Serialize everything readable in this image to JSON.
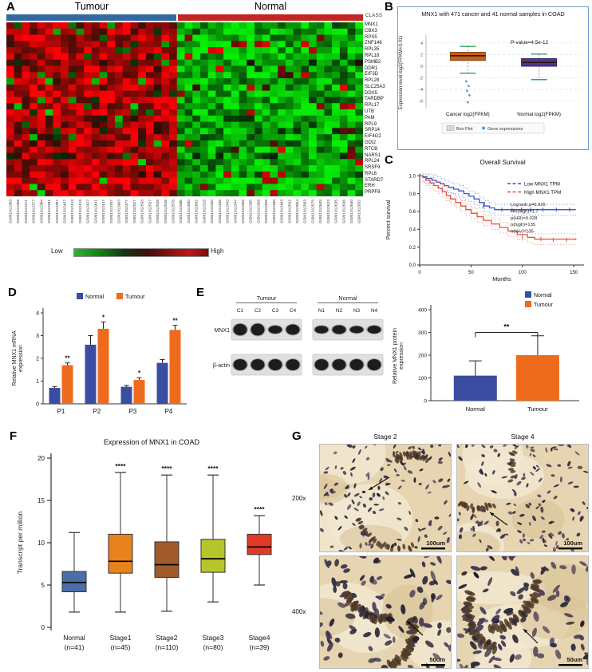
{
  "panels": {
    "a": "A",
    "b": "B",
    "c": "C",
    "d": "D",
    "e": "E",
    "f": "F",
    "g": "G"
  },
  "panel_a": {
    "groups": [
      {
        "name": "Tumour",
        "color": "#34699f"
      },
      {
        "name": "Normal",
        "color": "#c42424"
      }
    ],
    "class_label": "CLASS",
    "genes": [
      "MNX1",
      "CBX3",
      "RPS5",
      "ZNF146",
      "RPL35",
      "RPL18",
      "PSMB2",
      "DDR1",
      "EIF3D",
      "RPL28",
      "SLC25A3",
      "DDX5",
      "TARDBP",
      "RPL17",
      "UTB",
      "PAM",
      "RPL9",
      "SRP14",
      "EIF4G2",
      "GDI2",
      "RTCB",
      "NARS1",
      "RPL24",
      "SRSF9",
      "RPL6",
      "STARD7",
      "ERH",
      "PRPF8"
    ],
    "samples": [
      "GSM1012363",
      "GSM1012366",
      "GSM1012371",
      "GSM1012377",
      "GSM1012384",
      "GSM1012391",
      "GSM1012397",
      "GSM1012407",
      "GSM1012413",
      "GSM1012419",
      "GSM1012427",
      "GSM1012441",
      "GSM1012447",
      "GSM1012457",
      "GSM1012463",
      "GSM1012477",
      "GSM1012527",
      "GSM1012533",
      "GSM1012537",
      "GSM1012539",
      "GSM1012546",
      "GSM1012576",
      "GSM1012586",
      "GSM1012590",
      "GSM1012602",
      "GSM1012315",
      "GSM1012330",
      "GSM1012335",
      "GSM1012343",
      "GSM1012347",
      "GSM1012355",
      "GSM1012365",
      "GSM1012369",
      "GSM1012459",
      "GSM1012480",
      "GSM1012483",
      "GSM1012542",
      "GSM1012554",
      "GSM1012563",
      "GSM1012575",
      "GSM1012603",
      "GSM1012623",
      "GSM1012635",
      "GSM1012636",
      "GSM1012640",
      "GSM1012652"
    ],
    "scale": {
      "low": "Low",
      "high": "High"
    },
    "heatmap": {
      "tumour_cols": 22,
      "normal_cols": 24,
      "seed": 11
    }
  },
  "chart_data": [
    {
      "id": "b_box",
      "panel": "B",
      "type": "box",
      "title": "MNX1 with 471 cancer and 41 normal samples in COAD",
      "pvalue": "P-value=4.5e-12",
      "ylabel": "Expression level log2(FPKM+0.01)",
      "ylim": [
        -7,
        4.8
      ],
      "yticks": [
        -6,
        -4,
        -2,
        0,
        2,
        4
      ],
      "categories": [
        "Cancer log2(FPKM)",
        "Normal log2(FPKM)"
      ],
      "boxes": [
        {
          "low": -1.2,
          "q1": 1.0,
          "median": 1.8,
          "q3": 2.4,
          "high": 3.4,
          "color": "#c2611b",
          "stroke": "#8a4512",
          "outliers": [
            -2.6,
            -3.4,
            -4.2,
            -5.0,
            -6.2
          ]
        },
        {
          "low": -2.3,
          "q1": 0.0,
          "median": 0.65,
          "q3": 1.3,
          "high": 2.1,
          "color": "#50368f",
          "stroke": "#34215f",
          "outliers": []
        }
      ],
      "legend": [
        "Box Plot",
        "Gene expressions"
      ],
      "frame_color": "#6f9bd2"
    },
    {
      "id": "c_survival",
      "panel": "C",
      "type": "line",
      "title": "Overall Survival",
      "xlabel": "Months",
      "ylabel": "Percent survival",
      "xlim": [
        0,
        160
      ],
      "ylim": [
        0,
        1.02
      ],
      "xticks": [
        0,
        50,
        100,
        150
      ],
      "yticks": [
        0,
        0.2,
        0.4,
        0.6,
        0.8,
        1.0
      ],
      "stats": [
        "Logrank p=0.026",
        "HR(high)=1.7",
        "p(HR)=0.028",
        "n(high)=135",
        "n(low)=135"
      ],
      "series": [
        {
          "name": "Low MNX1 TPM",
          "color": "#4053c8",
          "points": [
            [
              0,
              1
            ],
            [
              3,
              0.99
            ],
            [
              7,
              0.97
            ],
            [
              12,
              0.95
            ],
            [
              16,
              0.93
            ],
            [
              20,
              0.91
            ],
            [
              24,
              0.89
            ],
            [
              28,
              0.87
            ],
            [
              33,
              0.85
            ],
            [
              38,
              0.83
            ],
            [
              43,
              0.8
            ],
            [
              48,
              0.77
            ],
            [
              53,
              0.74
            ],
            [
              58,
              0.7
            ],
            [
              63,
              0.66
            ],
            [
              68,
              0.64
            ],
            [
              73,
              0.62
            ],
            [
              152,
              0.62
            ]
          ],
          "censor": [
            [
              62,
              0.66
            ],
            [
              80,
              0.62
            ],
            [
              90,
              0.62
            ],
            [
              99,
              0.62
            ],
            [
              108,
              0.62
            ],
            [
              120,
              0.62
            ],
            [
              133,
              0.62
            ],
            [
              146,
              0.62
            ]
          ]
        },
        {
          "name": "High MNX1 TPM",
          "color": "#e2503a",
          "points": [
            [
              0,
              1
            ],
            [
              3,
              0.98
            ],
            [
              6,
              0.95
            ],
            [
              10,
              0.92
            ],
            [
              14,
              0.89
            ],
            [
              18,
              0.86
            ],
            [
              22,
              0.82
            ],
            [
              26,
              0.78
            ],
            [
              30,
              0.74
            ],
            [
              35,
              0.7
            ],
            [
              40,
              0.66
            ],
            [
              45,
              0.62
            ],
            [
              50,
              0.58
            ],
            [
              56,
              0.54
            ],
            [
              62,
              0.5
            ],
            [
              70,
              0.46
            ],
            [
              78,
              0.42
            ],
            [
              86,
              0.38
            ],
            [
              95,
              0.34
            ],
            [
              105,
              0.31
            ],
            [
              112,
              0.29
            ],
            [
              152,
              0.28
            ]
          ],
          "censor": [
            [
              100,
              0.31
            ],
            [
              118,
              0.29
            ],
            [
              130,
              0.28
            ],
            [
              143,
              0.28
            ]
          ]
        }
      ]
    },
    {
      "id": "d_bar",
      "panel": "D",
      "type": "bar",
      "ylabel": "Relative MNX1 mRNA expression",
      "ylim": [
        0,
        4
      ],
      "yticks": [
        0,
        1,
        2,
        3,
        4
      ],
      "categories": [
        "P1",
        "P2",
        "P3",
        "P4"
      ],
      "series": [
        {
          "name": "Normal",
          "color": "#3b4da0",
          "values": [
            0.7,
            2.6,
            0.75,
            1.8
          ],
          "errors": [
            0.06,
            0.4,
            0.06,
            0.15
          ]
        },
        {
          "name": "Tumour",
          "color": "#ee6b1e",
          "values": [
            1.7,
            3.3,
            1.05,
            3.25
          ],
          "errors": [
            0.1,
            0.3,
            0.1,
            0.2
          ]
        }
      ],
      "significance": [
        "**",
        "*",
        "*",
        "**"
      ]
    },
    {
      "id": "e_bar",
      "panel": "E",
      "type": "bar",
      "ylabel": "Relative MNX1 protein expression",
      "ylim": [
        0,
        400
      ],
      "yticks": [
        0,
        100,
        200,
        300,
        400
      ],
      "categories": [
        "Normal",
        "Tumour"
      ],
      "values": [
        110,
        200
      ],
      "errors": [
        65,
        85
      ],
      "colors": [
        "#3b4da0",
        "#ee6b1e"
      ],
      "legend": [
        {
          "name": "Normal",
          "color": "#3b4da0"
        },
        {
          "name": "Tumour",
          "color": "#ee6b1e"
        }
      ],
      "significance": "**"
    },
    {
      "id": "f_box",
      "panel": "F",
      "type": "box",
      "title": "Expression of MNX1 in COAD",
      "ylabel": "Transcript per million",
      "ylim": [
        0,
        20
      ],
      "yticks": [
        0,
        5,
        10,
        15,
        20
      ],
      "boxes": [
        {
          "label": "Normal",
          "n": "(n=41)",
          "low": 1.8,
          "q1": 4.2,
          "median": 5.3,
          "q3": 6.6,
          "high": 11.2,
          "color": "#4a6fa8",
          "sig": ""
        },
        {
          "label": "Stage1",
          "n": "(n=45)",
          "low": 1.8,
          "q1": 6.4,
          "median": 7.8,
          "q3": 11.0,
          "high": 18.3,
          "color": "#e8821e",
          "sig": "****"
        },
        {
          "label": "Stage2",
          "n": "(n=110)",
          "low": 1.9,
          "q1": 5.9,
          "median": 7.4,
          "q3": 10.1,
          "high": 18.0,
          "color": "#a05a2c",
          "sig": "****"
        },
        {
          "label": "Stage3",
          "n": "(n=80)",
          "low": 3.0,
          "q1": 6.5,
          "median": 8.1,
          "q3": 10.4,
          "high": 18.0,
          "color": "#b6c529",
          "sig": "****"
        },
        {
          "label": "Stage4",
          "n": "(n=39)",
          "low": 5.0,
          "q1": 8.6,
          "median": 9.5,
          "q3": 11.0,
          "high": 13.2,
          "color": "#df3b26",
          "sig": "****"
        }
      ]
    }
  ],
  "panel_e_blot": {
    "groups": [
      {
        "name": "Tumour",
        "lanes": [
          "C1",
          "C2",
          "C3",
          "C4"
        ]
      },
      {
        "name": "Normal",
        "lanes": [
          "N1",
          "N2",
          "N3",
          "N4"
        ]
      }
    ],
    "rows": [
      {
        "name": "MNX1",
        "tumour": [
          0.95,
          1.0,
          0.5,
          0.8
        ],
        "normal": [
          0.45,
          0.6,
          0.4,
          0.5
        ]
      },
      {
        "name": "β-actin",
        "tumour": [
          0.9,
          0.9,
          0.9,
          0.9
        ],
        "normal": [
          0.9,
          0.9,
          0.9,
          0.9
        ]
      }
    ]
  },
  "panel_g": {
    "columns": [
      "Stage 2",
      "Stage 4"
    ],
    "rows": [
      "200x",
      "400x"
    ],
    "scalebars": [
      [
        "100um",
        "100um"
      ],
      [
        "50um",
        "50um"
      ]
    ]
  }
}
